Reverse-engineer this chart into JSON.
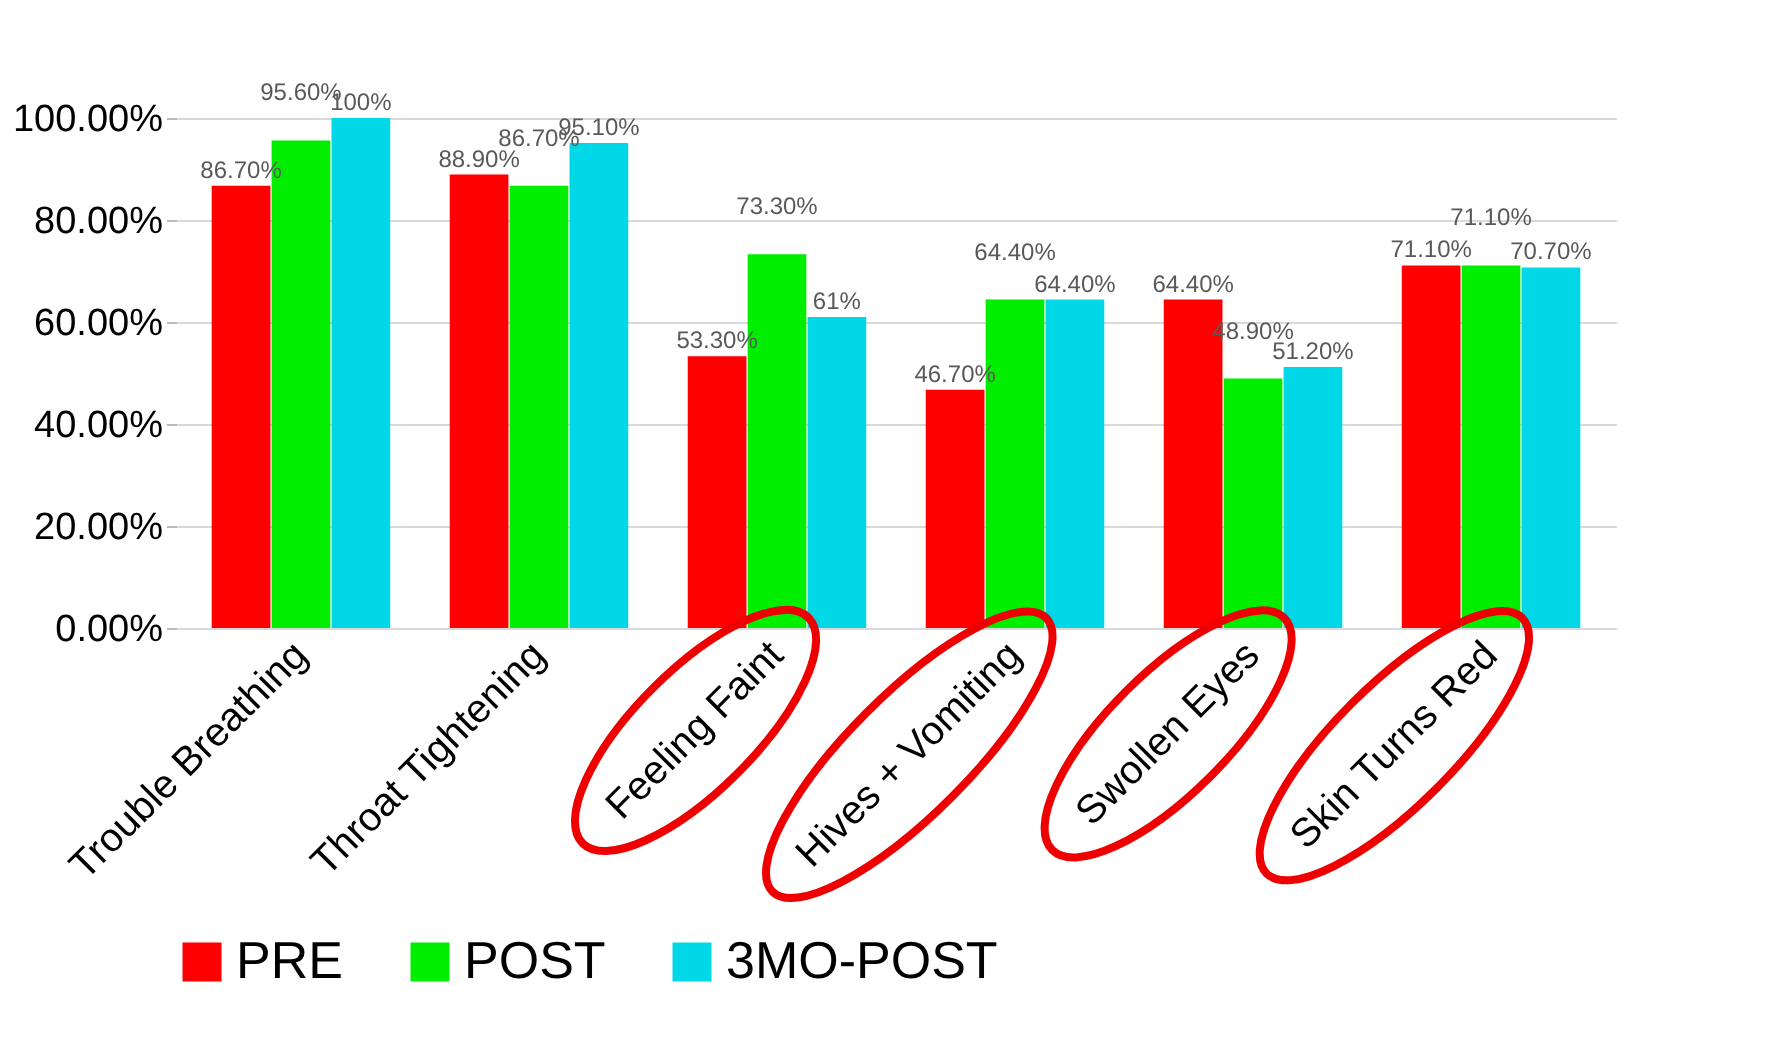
{
  "chart_data": {
    "type": "bar",
    "categories": [
      "Trouble Breathing",
      "Throat Tightening",
      "Feeling Faint",
      "Hives + Vomiting",
      "Swollen Eyes",
      "Skin Turns Red"
    ],
    "series": [
      {
        "name": "PRE",
        "color": "#ff0000",
        "values": [
          86.7,
          88.9,
          53.3,
          46.7,
          64.4,
          71.1
        ],
        "value_labels": [
          "86.70%",
          "88.90%",
          "53.30%",
          "46.70%",
          "64.40%",
          "71.10%"
        ]
      },
      {
        "name": "POST",
        "color": "#00ee00",
        "values": [
          95.6,
          86.7,
          73.3,
          64.4,
          48.9,
          71.1
        ],
        "value_labels": [
          "95.60%",
          "86.70%",
          "73.30%",
          "64.40%",
          "48.90%",
          "71.10%"
        ]
      },
      {
        "name": "3MO-POST",
        "color": "#00d8e8",
        "values": [
          100,
          95.1,
          61,
          64.4,
          51.2,
          70.7
        ],
        "value_labels": [
          "100%",
          "95.10%",
          "61%",
          "64.40%",
          "51.20%",
          "70.70%"
        ]
      }
    ],
    "ylim": [
      0,
      100
    ],
    "yticks": [
      {
        "value": 0,
        "label": "0.00%"
      },
      {
        "value": 20,
        "label": "20.00%"
      },
      {
        "value": 40,
        "label": "40.00%"
      },
      {
        "value": 60,
        "label": "60.00%"
      },
      {
        "value": 80,
        "label": "80.00%"
      },
      {
        "value": 100,
        "label": "100.00%"
      }
    ],
    "grid": "y",
    "legend": "bottom"
  }
}
